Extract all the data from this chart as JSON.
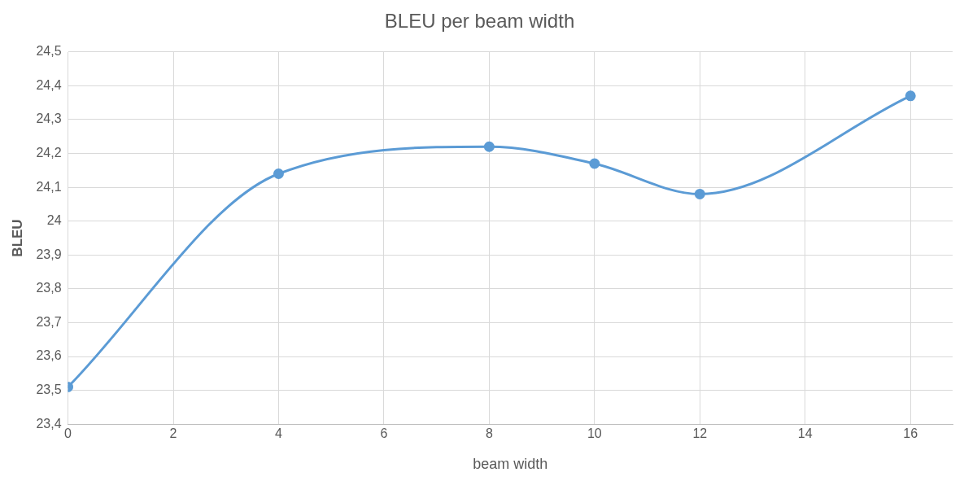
{
  "chart_data": {
    "type": "line",
    "title": "BLEU per beam width",
    "xlabel": "beam width",
    "ylabel": "BLEU",
    "x": [
      0,
      4,
      8,
      10,
      12,
      16
    ],
    "series": [
      {
        "color": "#5b9bd5",
        "values": [
          23.51,
          24.14,
          24.22,
          24.17,
          24.08,
          24.37
        ]
      }
    ],
    "xlim": [
      0,
      16.8
    ],
    "xticks": [
      0,
      2,
      4,
      6,
      8,
      10,
      12,
      14,
      16
    ],
    "ylim": [
      23.4,
      24.5
    ],
    "yticks": [
      {
        "value": 23.4,
        "label": "23,4"
      },
      {
        "value": 23.5,
        "label": "23,5"
      },
      {
        "value": 23.6,
        "label": "23,6"
      },
      {
        "value": 23.7,
        "label": "23,7"
      },
      {
        "value": 23.8,
        "label": "23,8"
      },
      {
        "value": 23.9,
        "label": "23,9"
      },
      {
        "value": 24,
        "label": "24"
      },
      {
        "value": 24.1,
        "label": "24,1"
      },
      {
        "value": 24.2,
        "label": "24,2"
      },
      {
        "value": 24.3,
        "label": "24,3"
      },
      {
        "value": 24.4,
        "label": "24,4"
      },
      {
        "value": 24.5,
        "label": "24,5"
      }
    ],
    "grid": true,
    "legend": false,
    "marker": "circle",
    "line_style": "solid"
  }
}
